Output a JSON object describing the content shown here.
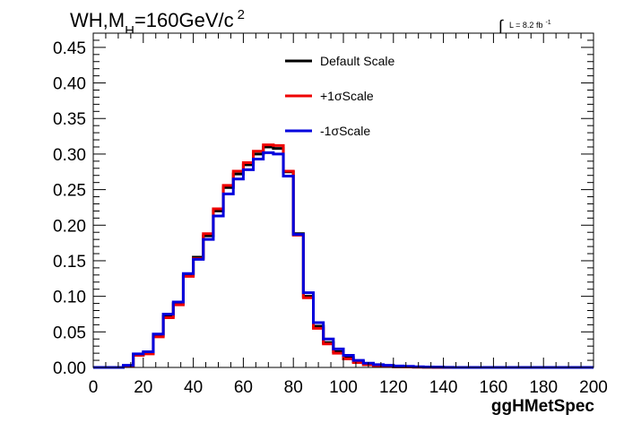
{
  "chart_data": {
    "type": "line",
    "title_parts": {
      "main": "WH,M",
      "sub": "H",
      "rest": "=160GeV/c",
      "sup": "2"
    },
    "lumi_label": "L = 8.2 fb",
    "lumi_sup": "-1",
    "lumi_integral": "∫",
    "xlabel": "ggHMetSpec",
    "xlim": [
      0,
      200
    ],
    "ylim": [
      0,
      0.47
    ],
    "xticks": [
      "0",
      "20",
      "40",
      "60",
      "80",
      "100",
      "120",
      "140",
      "160",
      "180",
      "200"
    ],
    "yticks": [
      "0.00",
      "0.05",
      "0.10",
      "0.15",
      "0.20",
      "0.25",
      "0.30",
      "0.35",
      "0.40",
      "0.45"
    ],
    "legend_position": "top-center",
    "bin_edges": [
      0,
      4,
      8,
      12,
      16,
      20,
      24,
      28,
      32,
      36,
      40,
      44,
      48,
      52,
      56,
      60,
      64,
      68,
      72,
      76,
      80,
      84,
      88,
      92,
      96,
      100,
      104,
      108,
      112,
      116,
      120,
      124,
      128,
      132,
      136,
      140,
      144,
      148,
      152,
      156,
      160,
      164,
      168,
      172,
      176,
      180,
      184,
      188,
      192,
      196,
      200
    ],
    "series": [
      {
        "name": "Default Scale",
        "color": "#000000",
        "values": [
          0,
          0,
          0,
          0.002,
          0.018,
          0.02,
          0.045,
          0.072,
          0.09,
          0.13,
          0.155,
          0.185,
          0.22,
          0.253,
          0.272,
          0.285,
          0.3,
          0.31,
          0.308,
          0.275,
          0.188,
          0.1,
          0.058,
          0.035,
          0.022,
          0.014,
          0.008,
          0.004,
          0.003,
          0.002,
          0.001,
          0.001,
          0.0005,
          0.0003,
          0.0002,
          0,
          0,
          0,
          0,
          0,
          0,
          0,
          0,
          0,
          0,
          0,
          0,
          0,
          0,
          0
        ]
      },
      {
        "name": "+1σScale",
        "color": "#ee0000",
        "values": [
          0,
          0,
          0,
          0.002,
          0.017,
          0.019,
          0.043,
          0.07,
          0.088,
          0.128,
          0.153,
          0.188,
          0.223,
          0.256,
          0.276,
          0.288,
          0.304,
          0.313,
          0.312,
          0.276,
          0.186,
          0.098,
          0.055,
          0.033,
          0.02,
          0.012,
          0.007,
          0.004,
          0.002,
          0.0015,
          0.001,
          0.0008,
          0.0005,
          0.0003,
          0.0002,
          0,
          0,
          0,
          0,
          0,
          0,
          0,
          0,
          0,
          0,
          0,
          0,
          0,
          0,
          0
        ]
      },
      {
        "name": "-1σScale",
        "color": "#0000dd",
        "values": [
          0,
          0,
          0,
          0.003,
          0.019,
          0.022,
          0.047,
          0.075,
          0.092,
          0.132,
          0.152,
          0.18,
          0.213,
          0.244,
          0.265,
          0.278,
          0.293,
          0.302,
          0.3,
          0.269,
          0.187,
          0.105,
          0.063,
          0.04,
          0.026,
          0.017,
          0.01,
          0.006,
          0.004,
          0.003,
          0.002,
          0.0015,
          0.001,
          0.0006,
          0.0004,
          0.0002,
          0,
          0,
          0,
          0,
          0,
          0,
          0,
          0,
          0,
          0,
          0,
          0,
          0,
          0
        ]
      }
    ]
  }
}
